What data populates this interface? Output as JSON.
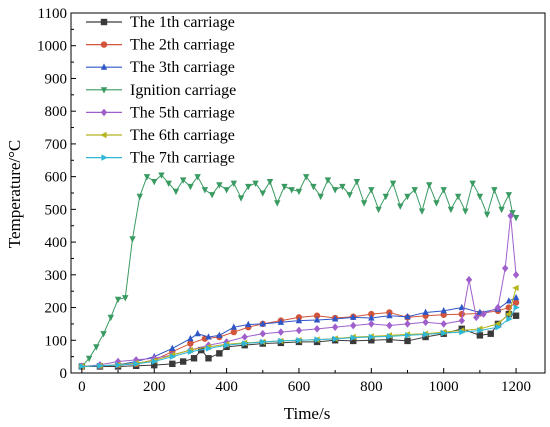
{
  "chart_data": {
    "type": "line",
    "title": "",
    "xlabel": "Time/s",
    "ylabel": "Temperature/°C",
    "xlim": [
      -30,
      1280
    ],
    "ylim": [
      0,
      1100
    ],
    "xticks": [
      0,
      200,
      400,
      600,
      800,
      1000,
      1200
    ],
    "yticks": [
      0,
      100,
      200,
      300,
      400,
      500,
      600,
      700,
      800,
      900,
      1000,
      1100
    ],
    "grid": false,
    "legend_position": "top-left",
    "series": [
      {
        "name": "The 1th carriage",
        "color": "#3a3a3a",
        "marker": "square",
        "x": [
          0,
          50,
          100,
          150,
          200,
          250,
          280,
          310,
          330,
          350,
          380,
          400,
          450,
          500,
          550,
          600,
          650,
          700,
          750,
          800,
          850,
          900,
          950,
          1000,
          1050,
          1100,
          1130,
          1150,
          1180,
          1200
        ],
        "y": [
          20,
          20,
          20,
          22,
          24,
          28,
          35,
          45,
          70,
          45,
          60,
          80,
          85,
          90,
          92,
          95,
          95,
          100,
          98,
          100,
          102,
          98,
          110,
          120,
          135,
          115,
          120,
          150,
          180,
          175
        ]
      },
      {
        "name": "The 2th carriage",
        "color": "#d2553b",
        "marker": "circle",
        "x": [
          0,
          50,
          100,
          150,
          200,
          250,
          300,
          340,
          380,
          420,
          460,
          500,
          550,
          600,
          650,
          700,
          750,
          800,
          850,
          900,
          950,
          1000,
          1050,
          1100,
          1150,
          1180,
          1200
        ],
        "y": [
          20,
          22,
          24,
          28,
          40,
          65,
          90,
          105,
          110,
          125,
          140,
          150,
          160,
          170,
          175,
          168,
          172,
          180,
          185,
          170,
          175,
          178,
          180,
          182,
          190,
          200,
          215
        ]
      },
      {
        "name": "The 3th carriage",
        "color": "#2f56c7",
        "marker": "triangle-up",
        "x": [
          0,
          50,
          100,
          150,
          200,
          250,
          300,
          320,
          350,
          380,
          420,
          460,
          500,
          550,
          600,
          650,
          700,
          750,
          800,
          850,
          900,
          950,
          1000,
          1050,
          1100,
          1150,
          1180,
          1200
        ],
        "y": [
          20,
          22,
          25,
          35,
          50,
          75,
          105,
          120,
          110,
          115,
          140,
          148,
          150,
          155,
          160,
          162,
          165,
          170,
          168,
          175,
          172,
          185,
          190,
          200,
          185,
          195,
          220,
          230
        ]
      },
      {
        "name": "Ignition carriage",
        "color": "#3a9b62",
        "marker": "triangle-down",
        "x": [
          0,
          20,
          40,
          60,
          80,
          100,
          120,
          140,
          160,
          180,
          200,
          220,
          240,
          260,
          280,
          300,
          320,
          340,
          360,
          380,
          400,
          420,
          440,
          460,
          480,
          500,
          520,
          540,
          560,
          580,
          600,
          620,
          640,
          660,
          680,
          700,
          720,
          740,
          760,
          780,
          800,
          820,
          840,
          860,
          880,
          900,
          920,
          940,
          960,
          980,
          1000,
          1020,
          1040,
          1060,
          1080,
          1100,
          1120,
          1140,
          1160,
          1180,
          1190,
          1200
        ],
        "y": [
          20,
          45,
          80,
          120,
          170,
          225,
          230,
          410,
          540,
          600,
          585,
          605,
          580,
          555,
          590,
          570,
          600,
          560,
          545,
          575,
          560,
          580,
          535,
          570,
          580,
          550,
          585,
          520,
          570,
          560,
          555,
          600,
          570,
          540,
          590,
          560,
          570,
          545,
          585,
          520,
          560,
          500,
          540,
          580,
          510,
          540,
          560,
          495,
          575,
          520,
          560,
          500,
          540,
          495,
          580,
          540,
          485,
          560,
          500,
          545,
          490,
          475
        ]
      },
      {
        "name": "The 5th carriage",
        "color": "#a060cc",
        "marker": "diamond",
        "x": [
          0,
          50,
          100,
          150,
          200,
          250,
          300,
          350,
          400,
          450,
          500,
          550,
          600,
          650,
          700,
          750,
          800,
          850,
          900,
          950,
          1000,
          1050,
          1070,
          1090,
          1110,
          1150,
          1170,
          1185,
          1200
        ],
        "y": [
          20,
          25,
          35,
          40,
          45,
          55,
          70,
          85,
          95,
          110,
          120,
          125,
          130,
          135,
          140,
          145,
          150,
          145,
          150,
          155,
          150,
          160,
          285,
          170,
          180,
          200,
          320,
          480,
          300
        ]
      },
      {
        "name": "The 6th carriage",
        "color": "#b5b51e",
        "marker": "triangle-left",
        "x": [
          0,
          50,
          100,
          150,
          200,
          250,
          300,
          350,
          400,
          450,
          500,
          550,
          600,
          650,
          700,
          750,
          800,
          850,
          900,
          950,
          1000,
          1050,
          1100,
          1150,
          1180,
          1200
        ],
        "y": [
          20,
          22,
          25,
          30,
          38,
          55,
          70,
          80,
          88,
          92,
          95,
          98,
          100,
          102,
          105,
          110,
          112,
          115,
          118,
          120,
          125,
          130,
          135,
          150,
          180,
          260
        ]
      },
      {
        "name": "The 7th carriage",
        "color": "#2fb7d8",
        "marker": "triangle-right",
        "x": [
          0,
          50,
          100,
          150,
          200,
          250,
          300,
          350,
          400,
          450,
          500,
          550,
          600,
          650,
          700,
          750,
          800,
          850,
          900,
          950,
          1000,
          1050,
          1100,
          1150,
          1180,
          1200
        ],
        "y": [
          20,
          22,
          24,
          28,
          35,
          50,
          65,
          75,
          85,
          90,
          95,
          98,
          100,
          102,
          104,
          108,
          110,
          112,
          115,
          118,
          122,
          125,
          130,
          140,
          165,
          200
        ]
      }
    ]
  }
}
